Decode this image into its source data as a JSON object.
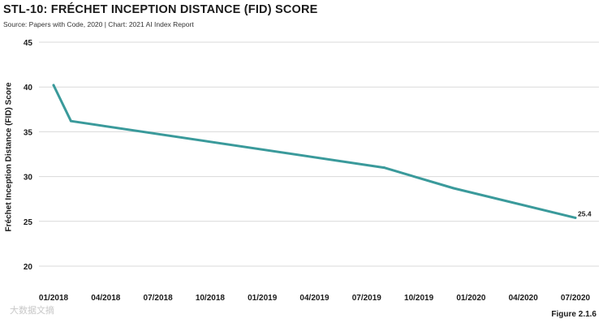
{
  "header": {
    "title": "STL-10: FRÉCHET INCEPTION DISTANCE (FID) SCORE",
    "source": "Source: Papers with Code, 2020 | Chart: 2021 AI Index Report"
  },
  "footer": {
    "figure_label": "Figure 2.1.6",
    "watermark": "大数据文摘"
  },
  "colors": {
    "line": "#3a9a9b",
    "grid": "#d9d9d9",
    "text": "#1a1a1a"
  },
  "chart_data": {
    "type": "line",
    "title": "STL-10: FRÉCHET INCEPTION DISTANCE (FID) SCORE",
    "xlabel": "",
    "ylabel": "Fréchet Inception Distance (FID) Score",
    "ylim": [
      20,
      45
    ],
    "yticks": [
      20,
      25,
      30,
      35,
      40,
      45
    ],
    "x_tick_labels": [
      "01/2018",
      "04/2018",
      "07/2018",
      "10/2018",
      "01/2019",
      "04/2019",
      "07/2019",
      "10/2019",
      "01/2020",
      "04/2020",
      "07/2020"
    ],
    "grid": true,
    "series": [
      {
        "x": [
          "01/2018",
          "02/2018",
          "08/2019",
          "12/2019",
          "07/2020"
        ],
        "y": [
          40.2,
          36.2,
          31.0,
          28.7,
          25.4
        ]
      }
    ],
    "annotations": [
      {
        "x": "07/2020",
        "y": 25.4,
        "text": "25.4"
      }
    ]
  }
}
